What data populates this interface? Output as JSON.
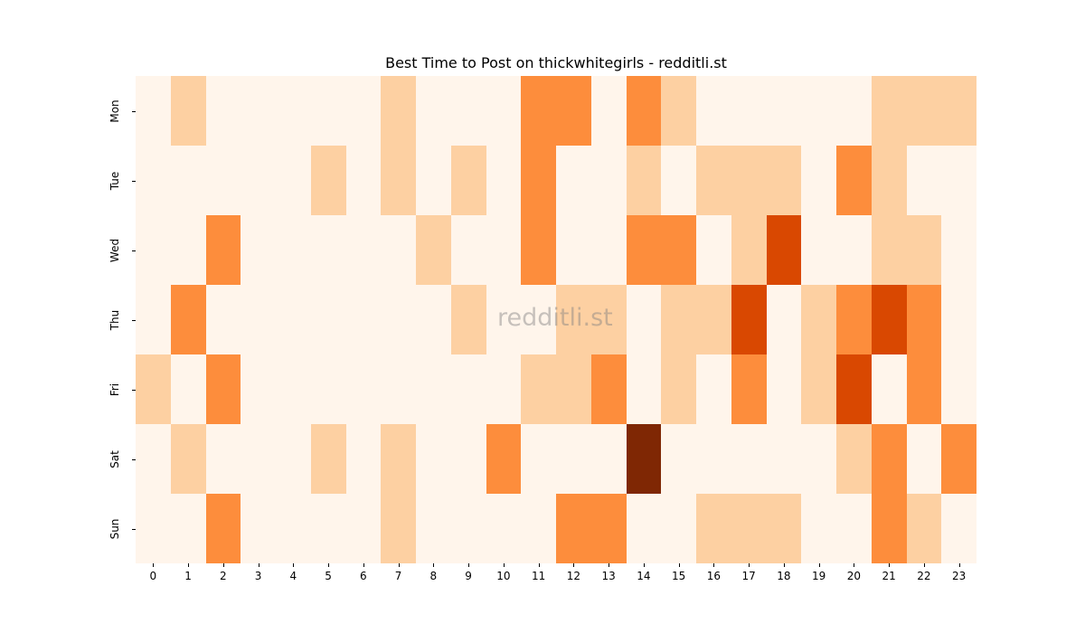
{
  "chart_data": {
    "type": "heatmap",
    "title": "Best Time to Post on thickwhitegirls - redditli.st",
    "xlabel": "",
    "ylabel": "",
    "x": [
      "0",
      "1",
      "2",
      "3",
      "4",
      "5",
      "6",
      "7",
      "8",
      "9",
      "10",
      "11",
      "12",
      "13",
      "14",
      "15",
      "16",
      "17",
      "18",
      "19",
      "20",
      "21",
      "22",
      "23"
    ],
    "y": [
      "Mon",
      "Tue",
      "Wed",
      "Thu",
      "Fri",
      "Sat",
      "Sun"
    ],
    "values": [
      [
        0,
        1,
        0,
        0,
        0,
        0,
        0,
        1,
        0,
        0,
        0,
        2,
        2,
        0,
        2,
        1,
        0,
        0,
        0,
        0,
        0,
        1,
        1,
        1
      ],
      [
        0,
        0,
        0,
        0,
        0,
        1,
        0,
        1,
        0,
        1,
        0,
        2,
        0,
        0,
        1,
        0,
        1,
        1,
        1,
        0,
        2,
        1,
        0,
        0
      ],
      [
        0,
        0,
        2,
        0,
        0,
        0,
        0,
        0,
        1,
        0,
        0,
        2,
        0,
        0,
        2,
        2,
        0,
        1,
        3,
        0,
        0,
        1,
        1,
        0
      ],
      [
        0,
        2,
        0,
        0,
        0,
        0,
        0,
        0,
        0,
        1,
        0,
        0,
        1,
        1,
        0,
        1,
        1,
        3,
        0,
        1,
        2,
        3,
        2,
        0
      ],
      [
        1,
        0,
        2,
        0,
        0,
        0,
        0,
        0,
        0,
        0,
        0,
        1,
        1,
        2,
        0,
        1,
        0,
        2,
        0,
        1,
        3,
        0,
        2,
        0
      ],
      [
        0,
        1,
        0,
        0,
        0,
        1,
        0,
        1,
        0,
        0,
        2,
        0,
        0,
        0,
        4,
        0,
        0,
        0,
        0,
        0,
        1,
        2,
        0,
        2
      ],
      [
        0,
        0,
        2,
        0,
        0,
        0,
        0,
        1,
        0,
        0,
        0,
        0,
        2,
        2,
        0,
        0,
        1,
        1,
        1,
        0,
        0,
        2,
        1,
        0
      ]
    ],
    "colorscale": [
      "#fff5eb",
      "#fdd0a2",
      "#fd8d3c",
      "#d94801",
      "#7f2704"
    ],
    "watermark": "redditli.st",
    "legend": "none"
  }
}
